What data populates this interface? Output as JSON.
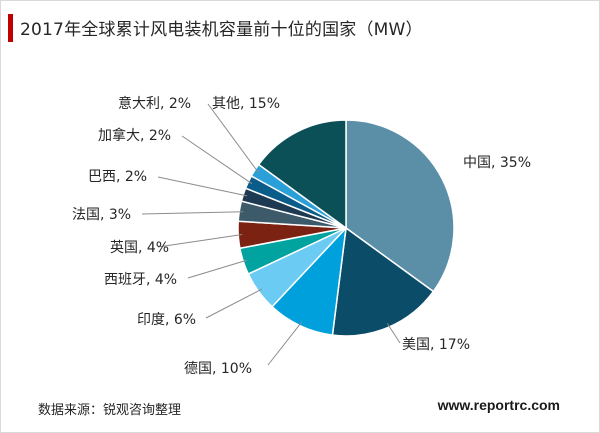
{
  "chart_data": {
    "type": "pie",
    "title": "2017年全球累计风电装机容量前十位的国家（MW）",
    "categories": [
      "中国",
      "美国",
      "德国",
      "印度",
      "西班牙",
      "英国",
      "法国",
      "巴西",
      "加拿大",
      "意大利",
      "其他"
    ],
    "values": [
      35,
      17,
      10,
      6,
      4,
      4,
      3,
      2,
      2,
      2,
      15
    ],
    "data_labels": [
      "中国, 35%",
      "美国, 17%",
      "德国, 10%",
      "印度, 6%",
      "西班牙, 4%",
      "英国, 4%",
      "法国, 3%",
      "巴西, 2%",
      "加拿大, 2%",
      "意大利, 2%",
      "其他, 15%"
    ],
    "colors": [
      "#5b8fa8",
      "#0b4d68",
      "#00a0dc",
      "#6ccbf2",
      "#00a3a0",
      "#7b2212",
      "#3d5a6b",
      "#1e3a52",
      "#0a5c8a",
      "#2a9fd8",
      "#0b5056"
    ],
    "start_angle_deg": 0,
    "direction": "clockwise",
    "legend": "none"
  },
  "source_text": "数据来源：锐观咨询整理",
  "website_text": "www.reportrc.com"
}
